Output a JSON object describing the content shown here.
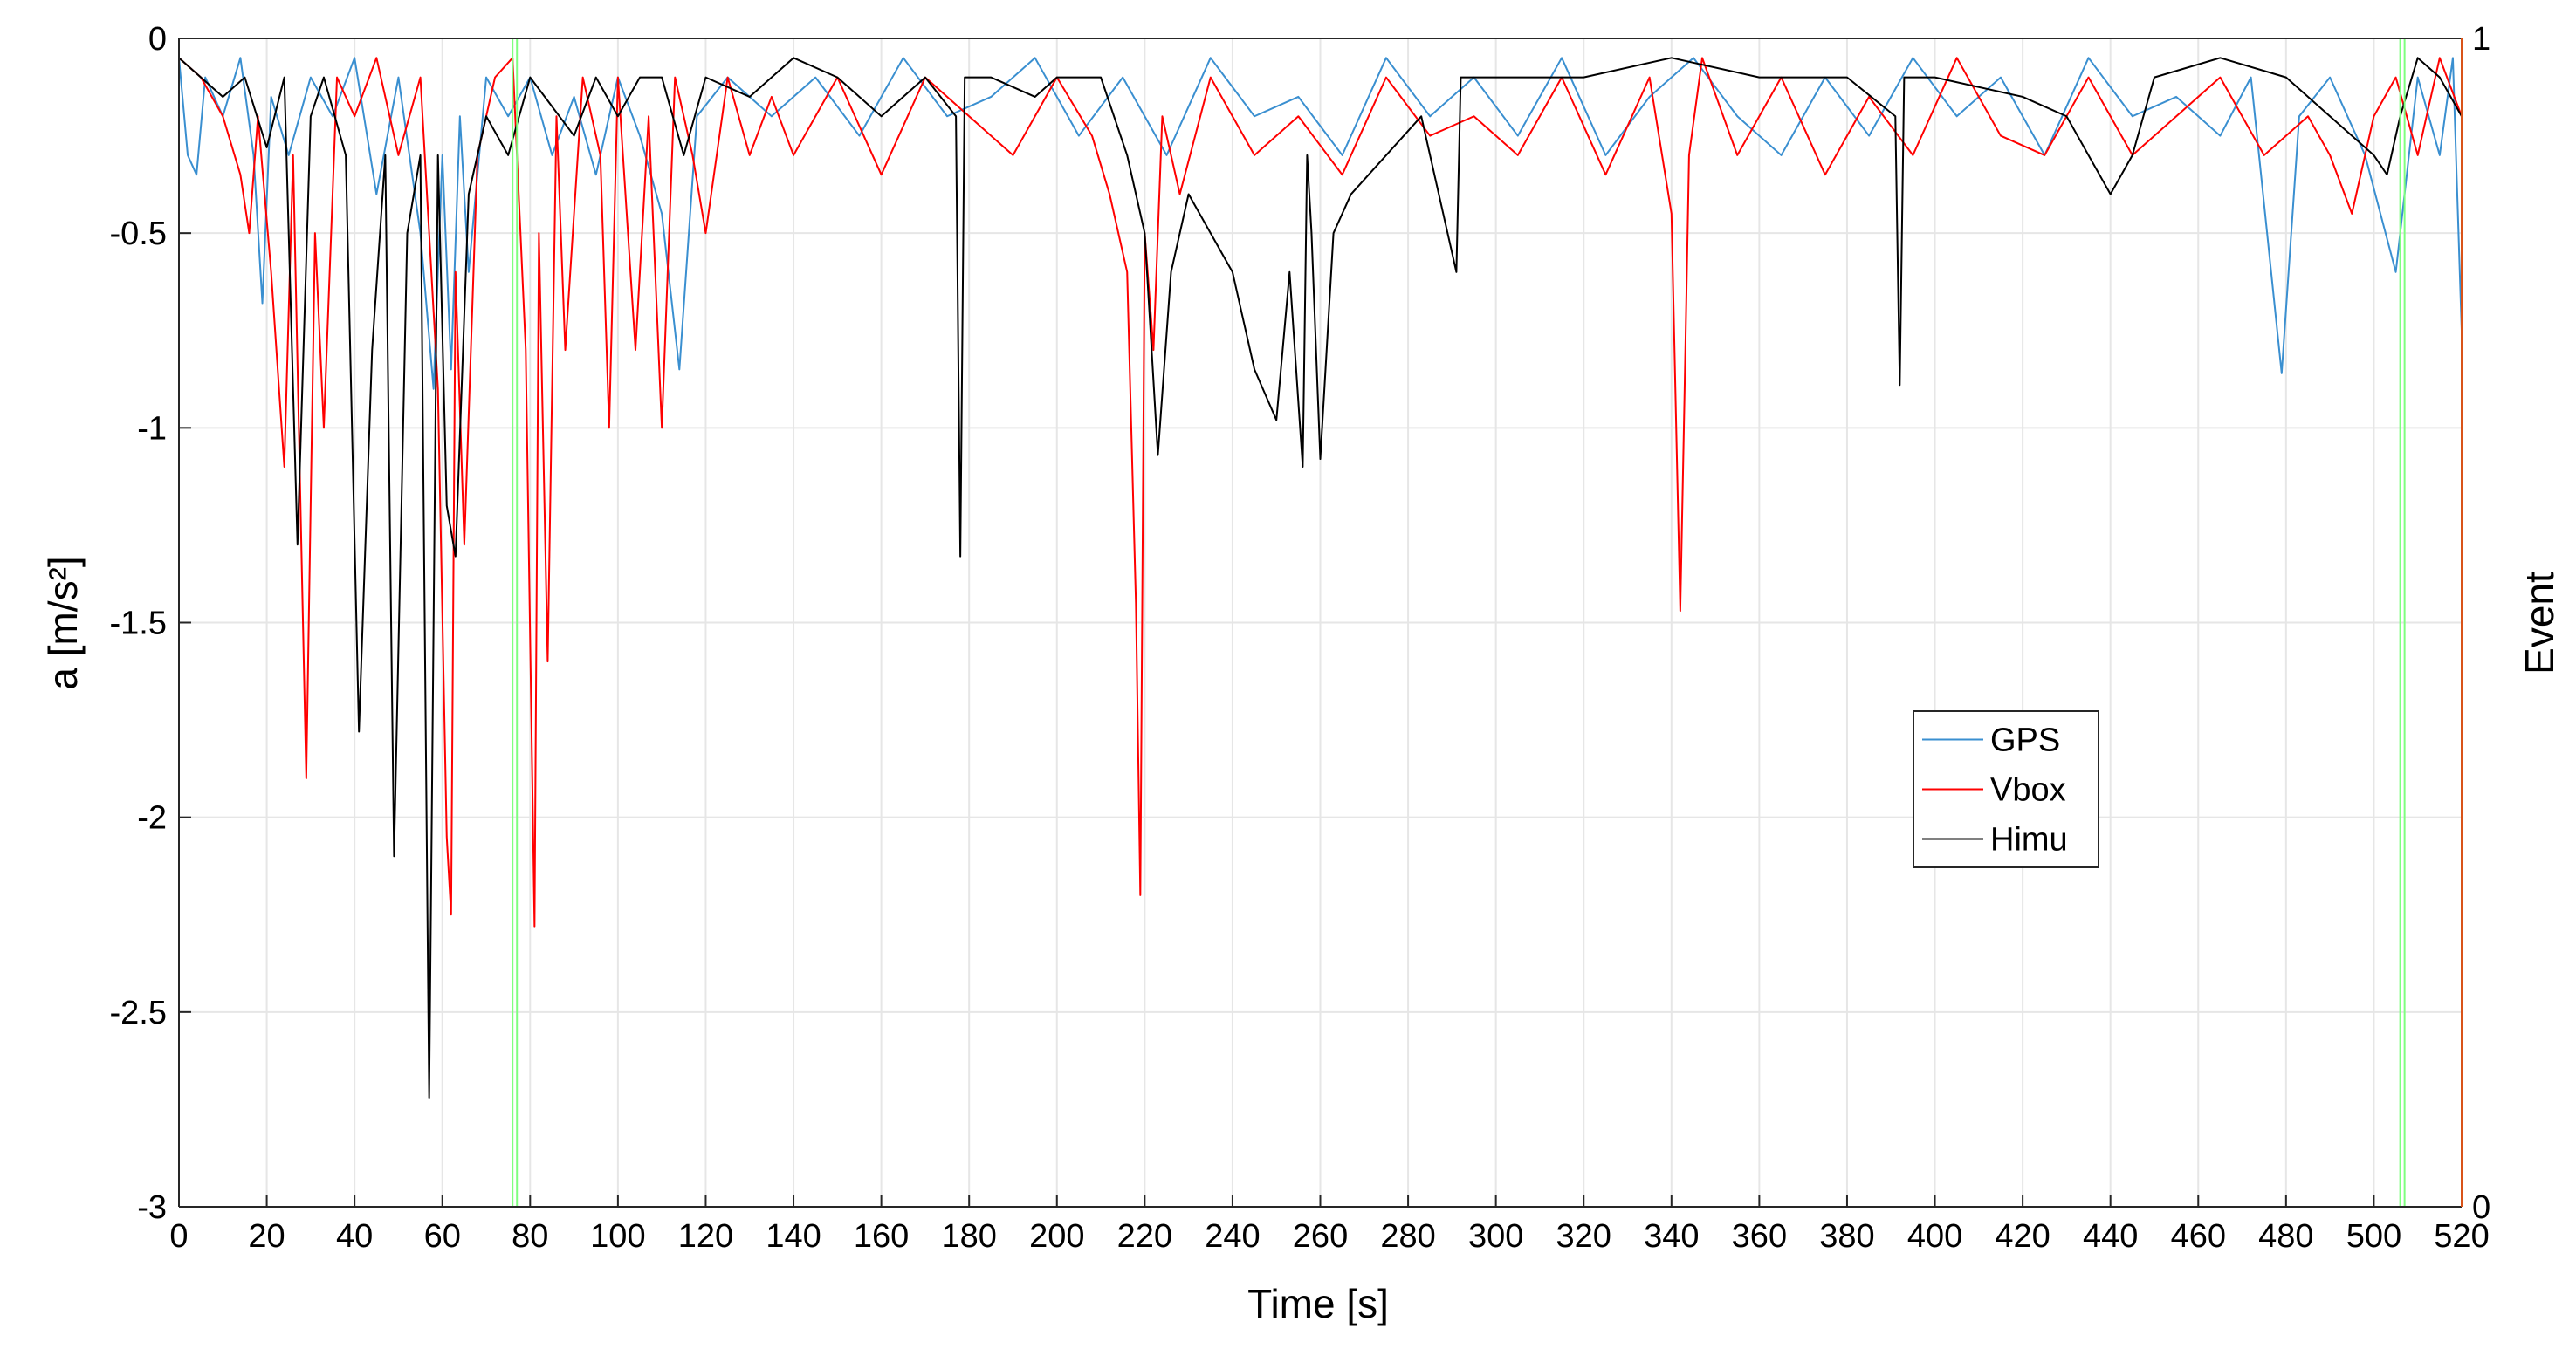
{
  "chart_data": {
    "type": "line",
    "x_label": "Time [s]",
    "y_label": "a [m/s²]",
    "y2_label": "Event",
    "xlim": [
      0,
      520
    ],
    "xticks": [
      0,
      20,
      40,
      60,
      80,
      100,
      120,
      140,
      160,
      180,
      200,
      220,
      240,
      260,
      280,
      300,
      320,
      340,
      360,
      380,
      400,
      420,
      440,
      460,
      480,
      500,
      520
    ],
    "ylim": [
      -3,
      0
    ],
    "yticks": [
      -3,
      -2.5,
      -2,
      -1.5,
      -1,
      -0.5,
      0
    ],
    "y2lim": [
      0,
      1
    ],
    "y2ticks": [
      0,
      1
    ],
    "y2_color": "#d95319",
    "grid": true,
    "legend": "southeast",
    "series": [
      {
        "name": "GPS",
        "color": "#3a8fd0",
        "x": [
          0,
          2,
          4,
          6,
          10,
          14,
          17,
          19,
          21,
          25,
          30,
          35,
          40,
          45,
          50,
          55,
          58,
          60,
          62,
          64,
          66,
          70,
          75,
          80,
          85,
          90,
          95,
          100,
          105,
          110,
          114,
          118,
          125,
          135,
          145,
          155,
          165,
          175,
          185,
          195,
          205,
          215,
          225,
          235,
          245,
          255,
          265,
          275,
          285,
          295,
          305,
          315,
          325,
          335,
          345,
          355,
          365,
          375,
          385,
          395,
          405,
          415,
          425,
          435,
          445,
          455,
          465,
          472,
          479,
          483,
          490,
          498,
          505,
          510,
          515,
          518,
          520
        ],
        "values": [
          -0.05,
          -0.3,
          -0.35,
          -0.1,
          -0.2,
          -0.05,
          -0.3,
          -0.68,
          -0.15,
          -0.3,
          -0.1,
          -0.2,
          -0.05,
          -0.4,
          -0.1,
          -0.5,
          -0.9,
          -0.3,
          -0.85,
          -0.2,
          -0.6,
          -0.1,
          -0.2,
          -0.1,
          -0.3,
          -0.15,
          -0.35,
          -0.1,
          -0.25,
          -0.45,
          -0.85,
          -0.2,
          -0.1,
          -0.2,
          -0.1,
          -0.25,
          -0.05,
          -0.2,
          -0.15,
          -0.05,
          -0.25,
          -0.1,
          -0.3,
          -0.05,
          -0.2,
          -0.15,
          -0.3,
          -0.05,
          -0.2,
          -0.1,
          -0.25,
          -0.05,
          -0.3,
          -0.15,
          -0.05,
          -0.2,
          -0.3,
          -0.1,
          -0.25,
          -0.05,
          -0.2,
          -0.1,
          -0.3,
          -0.05,
          -0.2,
          -0.15,
          -0.25,
          -0.1,
          -0.86,
          -0.2,
          -0.1,
          -0.3,
          -0.6,
          -0.1,
          -0.3,
          -0.05,
          -0.75
        ]
      },
      {
        "name": "Vbox",
        "color": "#ff0000",
        "x": [
          0,
          5,
          10,
          14,
          16,
          18,
          21,
          24,
          26,
          29,
          31,
          33,
          36,
          40,
          45,
          50,
          55,
          59,
          61,
          62,
          63,
          65,
          68,
          72,
          76,
          79,
          81,
          82,
          84,
          86,
          88,
          92,
          96,
          98,
          100,
          104,
          107,
          110,
          113,
          117,
          120,
          125,
          130,
          135,
          140,
          150,
          160,
          170,
          180,
          190,
          200,
          208,
          212,
          216,
          218,
          219,
          220,
          222,
          224,
          228,
          235,
          245,
          255,
          265,
          275,
          285,
          295,
          305,
          315,
          325,
          335,
          340,
          342,
          343,
          344,
          347,
          355,
          365,
          375,
          385,
          395,
          405,
          415,
          425,
          435,
          445,
          455,
          465,
          475,
          485,
          490,
          495,
          500,
          505,
          510,
          515,
          520
        ],
        "values": [
          -0.05,
          -0.1,
          -0.2,
          -0.35,
          -0.5,
          -0.2,
          -0.6,
          -1.1,
          -0.3,
          -1.9,
          -0.5,
          -1.0,
          -0.1,
          -0.2,
          -0.05,
          -0.3,
          -0.1,
          -0.9,
          -2.05,
          -2.25,
          -0.6,
          -1.3,
          -0.3,
          -0.1,
          -0.05,
          -0.8,
          -2.28,
          -0.5,
          -1.6,
          -0.2,
          -0.8,
          -0.1,
          -0.3,
          -1.0,
          -0.1,
          -0.8,
          -0.2,
          -1.0,
          -0.1,
          -0.3,
          -0.5,
          -0.1,
          -0.3,
          -0.15,
          -0.3,
          -0.1,
          -0.35,
          -0.1,
          -0.2,
          -0.3,
          -0.1,
          -0.25,
          -0.4,
          -0.6,
          -1.45,
          -2.2,
          -0.5,
          -0.8,
          -0.2,
          -0.4,
          -0.1,
          -0.3,
          -0.2,
          -0.35,
          -0.1,
          -0.25,
          -0.2,
          -0.3,
          -0.1,
          -0.35,
          -0.1,
          -0.45,
          -1.47,
          -0.9,
          -0.3,
          -0.05,
          -0.3,
          -0.1,
          -0.35,
          -0.15,
          -0.3,
          -0.05,
          -0.25,
          -0.3,
          -0.1,
          -0.3,
          -0.2,
          -0.1,
          -0.3,
          -0.2,
          -0.3,
          -0.45,
          -0.2,
          -0.1,
          -0.3,
          -0.05,
          -0.2
        ]
      },
      {
        "name": "Himu",
        "color": "#000000",
        "x": [
          0,
          5,
          10,
          15,
          20,
          24,
          27,
          30,
          33,
          38,
          41,
          44,
          47,
          49,
          52,
          55,
          57,
          59,
          61,
          63,
          66,
          70,
          75,
          80,
          90,
          95,
          100,
          105,
          110,
          115,
          120,
          130,
          140,
          150,
          160,
          170,
          177,
          178,
          179,
          185,
          195,
          200,
          210,
          216,
          220,
          223,
          226,
          230,
          235,
          240,
          245,
          250,
          253,
          256,
          257,
          258,
          260,
          263,
          267,
          275,
          283,
          291,
          292,
          300,
          320,
          340,
          360,
          380,
          391,
          392,
          393,
          400,
          420,
          430,
          440,
          445,
          450,
          465,
          480,
          490,
          500,
          503,
          506,
          510,
          515,
          520
        ],
        "values": [
          -0.05,
          -0.1,
          -0.15,
          -0.1,
          -0.28,
          -0.1,
          -1.3,
          -0.2,
          -0.1,
          -0.3,
          -1.78,
          -0.8,
          -0.3,
          -2.1,
          -0.5,
          -0.3,
          -2.72,
          -0.3,
          -1.2,
          -1.33,
          -0.4,
          -0.2,
          -0.3,
          -0.1,
          -0.25,
          -0.1,
          -0.2,
          -0.1,
          -0.1,
          -0.3,
          -0.1,
          -0.15,
          -0.05,
          -0.1,
          -0.2,
          -0.1,
          -0.2,
          -1.33,
          -0.1,
          -0.1,
          -0.15,
          -0.1,
          -0.1,
          -0.3,
          -0.5,
          -1.07,
          -0.6,
          -0.4,
          -0.5,
          -0.6,
          -0.85,
          -0.98,
          -0.6,
          -1.1,
          -0.3,
          -0.5,
          -1.08,
          -0.5,
          -0.4,
          -0.3,
          -0.2,
          -0.6,
          -0.1,
          -0.1,
          -0.1,
          -0.05,
          -0.1,
          -0.1,
          -0.2,
          -0.89,
          -0.1,
          -0.1,
          -0.15,
          -0.2,
          -0.4,
          -0.3,
          -0.1,
          -0.05,
          -0.1,
          -0.2,
          -0.3,
          -0.35,
          -0.2,
          -0.05,
          -0.1,
          -0.2
        ]
      },
      {
        "color": "#7fff7f",
        "axis": "y2",
        "x": [
          0,
          76,
          76,
          77,
          77,
          506,
          506,
          507,
          507,
          520
        ],
        "values": [
          0,
          0,
          1,
          1,
          0,
          0,
          1,
          1,
          0,
          0
        ]
      }
    ]
  }
}
